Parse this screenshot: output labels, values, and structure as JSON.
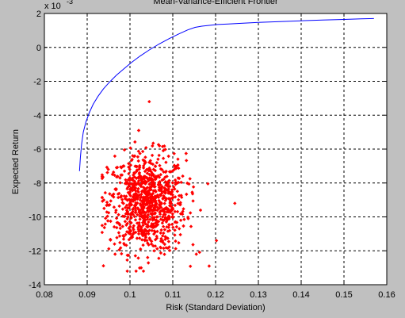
{
  "chart_data": {
    "type": "scatter",
    "title": "Mean-Variance-Efficient Frontier",
    "xlabel": "Risk (Standard Deviation)",
    "ylabel": "Expected Return",
    "y_exponent_label": "x 10",
    "y_exponent_power": "-3",
    "xlim": [
      0.08,
      0.16
    ],
    "ylim": [
      -14,
      2
    ],
    "xticks": [
      "0.08",
      "0.09",
      "0.1",
      "0.11",
      "0.12",
      "0.13",
      "0.14",
      "0.15",
      "0.16"
    ],
    "yticks": [
      "-14",
      "-12",
      "-10",
      "-8",
      "-6",
      "-4",
      "-2",
      "0",
      "2"
    ],
    "grid": true,
    "colors": {
      "frontier": "#0000ff",
      "portfolios": "#ff0000",
      "plot_bg": "#ffffff",
      "figure_bg": "#c0c0c0"
    },
    "series": [
      {
        "kind": "line",
        "x": [
          0.0882,
          0.0884,
          0.0887,
          0.0891,
          0.0897,
          0.0905,
          0.0914,
          0.0925,
          0.0938,
          0.0952,
          0.0968,
          0.0985,
          0.1003,
          0.1023,
          0.1045,
          0.1068,
          0.1092,
          0.1115,
          0.1135,
          0.1152,
          0.1168,
          0.1185,
          0.1205,
          0.123,
          0.126,
          0.13,
          0.135,
          0.14,
          0.145,
          0.15,
          0.154,
          0.157
        ],
        "y": [
          -7.3,
          -6.5,
          -5.7,
          -5.0,
          -4.4,
          -3.85,
          -3.35,
          -2.9,
          -2.45,
          -2.05,
          -1.65,
          -1.28,
          -0.9,
          -0.52,
          -0.15,
          0.2,
          0.52,
          0.8,
          1.03,
          1.18,
          1.25,
          1.3,
          1.35,
          1.38,
          1.42,
          1.47,
          1.52,
          1.57,
          1.61,
          1.65,
          1.68,
          1.7
        ]
      },
      {
        "kind": "scatter",
        "n": 900,
        "center_x": 0.104,
        "center_y": -9.2,
        "spread_x": 0.0045,
        "spread_y": 1.45,
        "x_range": [
          0.0935,
          0.1215
        ],
        "y_range": [
          -13.2,
          -4.9
        ],
        "outliers": [
          [
            0.1045,
            -3.2
          ],
          [
            0.1245,
            -9.2
          ],
          [
            0.1202,
            -11.4
          ],
          [
            0.1185,
            -12.9
          ],
          [
            0.1155,
            -12.2
          ]
        ]
      }
    ]
  }
}
